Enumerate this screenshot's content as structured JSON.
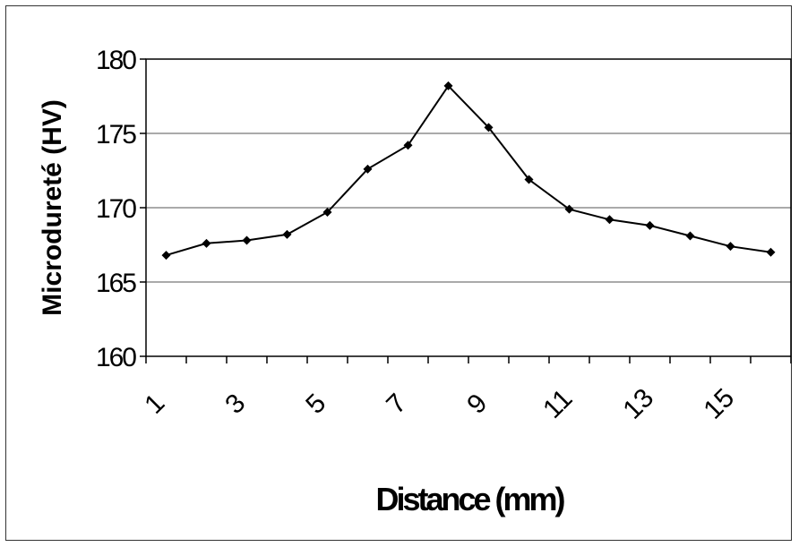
{
  "chart_data": {
    "type": "line",
    "title": "",
    "xlabel": "Distance (mm)",
    "ylabel": "Microdureté (HV)",
    "x": [
      1,
      2,
      3,
      4,
      5,
      6,
      7,
      8,
      9,
      10,
      11,
      12,
      13,
      14,
      15,
      16
    ],
    "values": [
      166.8,
      167.6,
      167.8,
      168.2,
      169.7,
      172.6,
      174.2,
      178.2,
      175.4,
      171.9,
      169.9,
      169.2,
      168.8,
      168.1,
      167.4,
      167.0
    ],
    "ylim": [
      160,
      180
    ],
    "yticks": [
      160,
      165,
      170,
      175,
      180
    ],
    "xtick_labels": [
      "1",
      "3",
      "5",
      "7",
      "9",
      "11",
      "13",
      "15"
    ],
    "grid": true,
    "legend": "none",
    "line_color": "#000000",
    "marker": "diamond"
  }
}
